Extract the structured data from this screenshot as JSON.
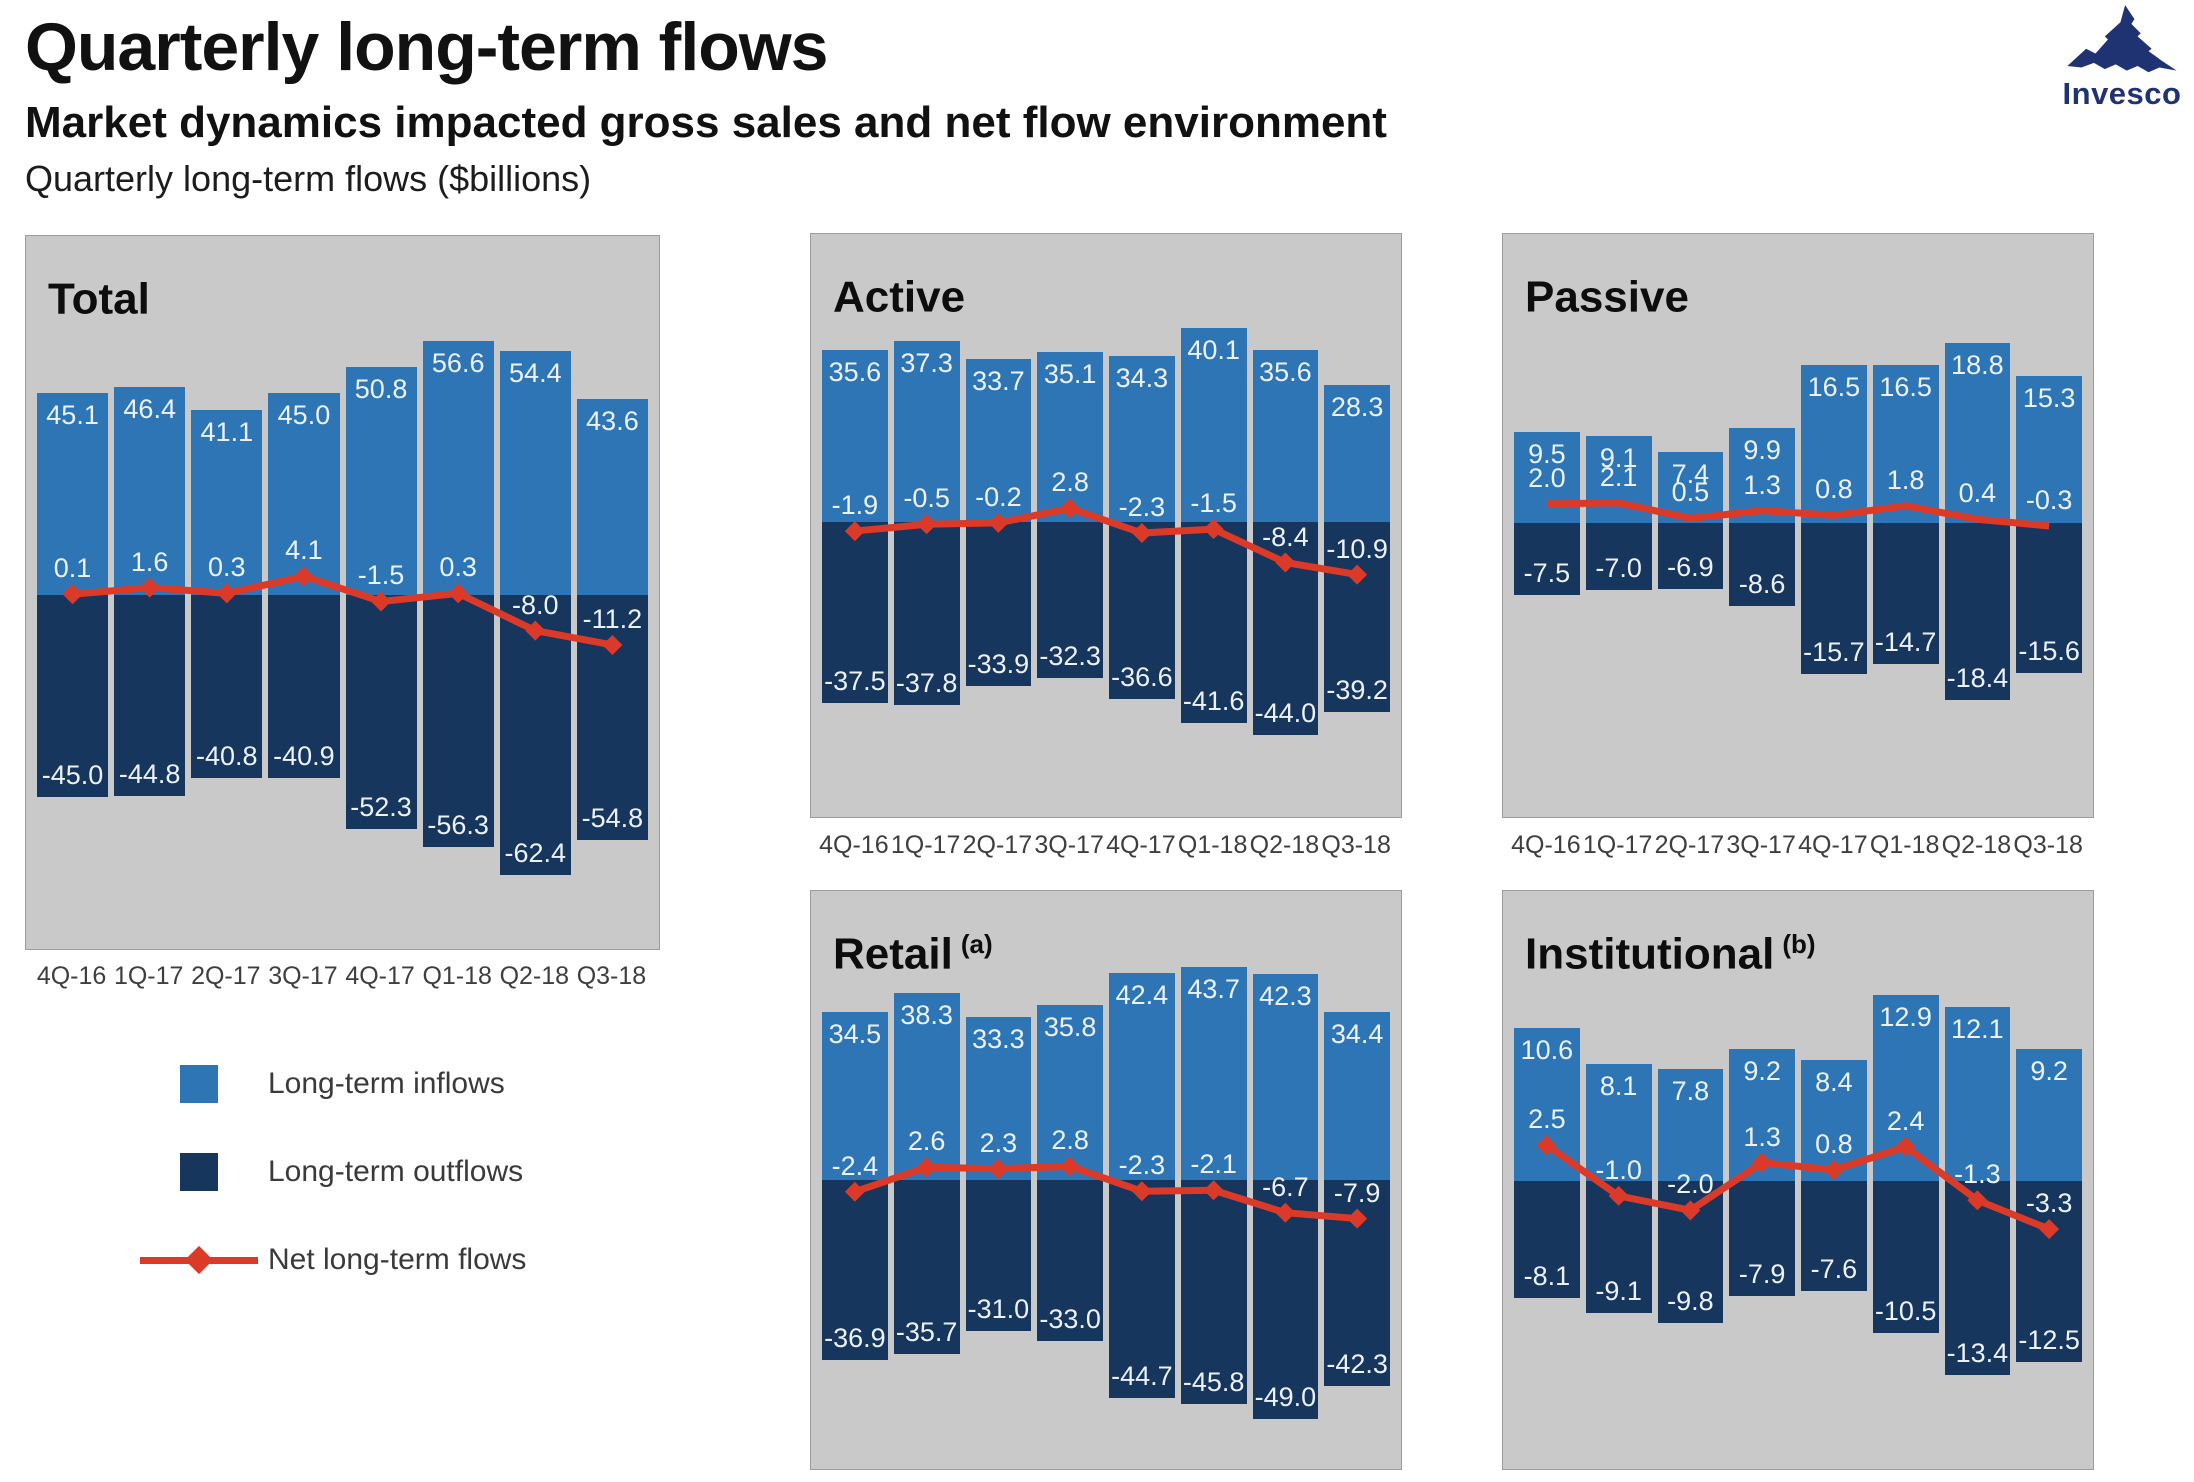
{
  "header": {
    "title": "Quarterly long-term flows",
    "subtitle": "Market dynamics impacted gross sales and net flow environment",
    "caption": "Quarterly long-term flows ($billions)",
    "logo_text": "Invesco"
  },
  "legend": {
    "items": [
      {
        "label": "Long-term inflows"
      },
      {
        "label": "Long-term outflows"
      },
      {
        "label": "Net long-term flows"
      }
    ]
  },
  "colors": {
    "inflow": "#2e75b6",
    "outflow": "#16365d",
    "net": "#dc3a28",
    "panel_bg": "#c9c9c9",
    "bar_label": "#edf2f9",
    "axis_label": "#3e3e3e",
    "logo": "#1f3372"
  },
  "chart_data": [
    {
      "id": "total",
      "type": "bar+line",
      "title": "Total",
      "categories": [
        "4Q-16",
        "1Q-17",
        "2Q-17",
        "3Q-17",
        "4Q-17",
        "Q1-18",
        "Q2-18",
        "Q3-18"
      ],
      "series": [
        {
          "name": "Long-term inflows",
          "values": [
            45.1,
            46.4,
            41.1,
            45.0,
            50.8,
            56.6,
            54.4,
            43.6
          ]
        },
        {
          "name": "Long-term outflows",
          "values": [
            -45.0,
            -44.8,
            -40.8,
            -40.9,
            -52.3,
            -56.3,
            -62.4,
            -54.8
          ]
        },
        {
          "name": "Net long-term flows",
          "values": [
            0.1,
            1.6,
            0.3,
            4.1,
            -1.5,
            0.3,
            -8.0,
            -11.2
          ]
        }
      ],
      "ylim": [
        -79,
        80
      ],
      "grid": false,
      "markers": true,
      "show_x_labels": true
    },
    {
      "id": "active",
      "type": "bar+line",
      "title": "Active",
      "categories": [
        "4Q-16",
        "1Q-17",
        "2Q-17",
        "3Q-17",
        "4Q-17",
        "Q1-18",
        "Q2-18",
        "Q3-18"
      ],
      "series": [
        {
          "name": "Long-term inflows",
          "values": [
            35.6,
            37.3,
            33.7,
            35.1,
            34.3,
            40.1,
            35.6,
            28.3
          ]
        },
        {
          "name": "Long-term outflows",
          "values": [
            -37.5,
            -37.8,
            -33.9,
            -32.3,
            -36.6,
            -41.6,
            -44.0,
            -39.2
          ]
        },
        {
          "name": "Net long-term flows",
          "values": [
            -1.9,
            -0.5,
            -0.2,
            2.8,
            -2.3,
            -1.5,
            -8.4,
            -10.9
          ]
        }
      ],
      "ylim": [
        -61,
        59.5
      ],
      "grid": false,
      "markers": true,
      "show_x_labels": true
    },
    {
      "id": "passive",
      "type": "bar+line",
      "title": "Passive",
      "categories": [
        "4Q-16",
        "1Q-17",
        "2Q-17",
        "3Q-17",
        "4Q-17",
        "Q1-18",
        "Q2-18",
        "Q3-18"
      ],
      "series": [
        {
          "name": "Long-term inflows",
          "values": [
            9.5,
            9.1,
            7.4,
            9.9,
            16.5,
            16.5,
            18.8,
            15.3
          ]
        },
        {
          "name": "Long-term outflows",
          "values": [
            -7.5,
            -7.0,
            -6.9,
            -8.6,
            -15.7,
            -14.7,
            -18.4,
            -15.6
          ]
        },
        {
          "name": "Net long-term flows",
          "values": [
            2.0,
            2.1,
            0.5,
            1.3,
            0.8,
            1.8,
            0.4,
            -0.3
          ]
        }
      ],
      "ylim": [
        -30.6,
        30.1
      ],
      "grid": false,
      "markers": false,
      "show_x_labels": true
    },
    {
      "id": "retail",
      "type": "bar+line",
      "title": "Retail",
      "note": "(a)",
      "categories": [
        "4Q-16",
        "1Q-17",
        "2Q-17",
        "3Q-17",
        "4Q-17",
        "Q1-18",
        "Q2-18",
        "Q3-18"
      ],
      "series": [
        {
          "name": "Long-term inflows",
          "values": [
            34.5,
            38.3,
            33.3,
            35.8,
            42.4,
            43.7,
            42.3,
            34.4
          ]
        },
        {
          "name": "Long-term outflows",
          "values": [
            -36.9,
            -35.7,
            -31.0,
            -33.0,
            -44.7,
            -45.8,
            -49.0,
            -42.3
          ]
        },
        {
          "name": "Net long-term flows",
          "values": [
            -2.4,
            2.6,
            2.3,
            2.8,
            -2.3,
            -2.1,
            -6.7,
            -7.9
          ]
        }
      ],
      "ylim": [
        -59.2,
        59.2
      ],
      "grid": false,
      "markers": true,
      "show_x_labels": false
    },
    {
      "id": "institutional",
      "type": "bar+line",
      "title": "Institutional",
      "note": "(b)",
      "categories": [
        "4Q-16",
        "1Q-17",
        "2Q-17",
        "3Q-17",
        "4Q-17",
        "Q1-18",
        "Q2-18",
        "Q3-18"
      ],
      "series": [
        {
          "name": "Long-term inflows",
          "values": [
            10.6,
            8.1,
            7.8,
            9.2,
            8.4,
            12.9,
            12.1,
            9.2
          ]
        },
        {
          "name": "Long-term outflows",
          "values": [
            -8.1,
            -9.1,
            -9.8,
            -7.9,
            -7.6,
            -10.5,
            -13.4,
            -12.5
          ]
        },
        {
          "name": "Net long-term flows",
          "values": [
            2.5,
            -1.0,
            -2.0,
            1.3,
            0.8,
            2.4,
            -1.3,
            -3.3
          ]
        }
      ],
      "ylim": [
        -19.9,
        20.1
      ],
      "grid": false,
      "markers": true,
      "show_x_labels": false
    }
  ]
}
